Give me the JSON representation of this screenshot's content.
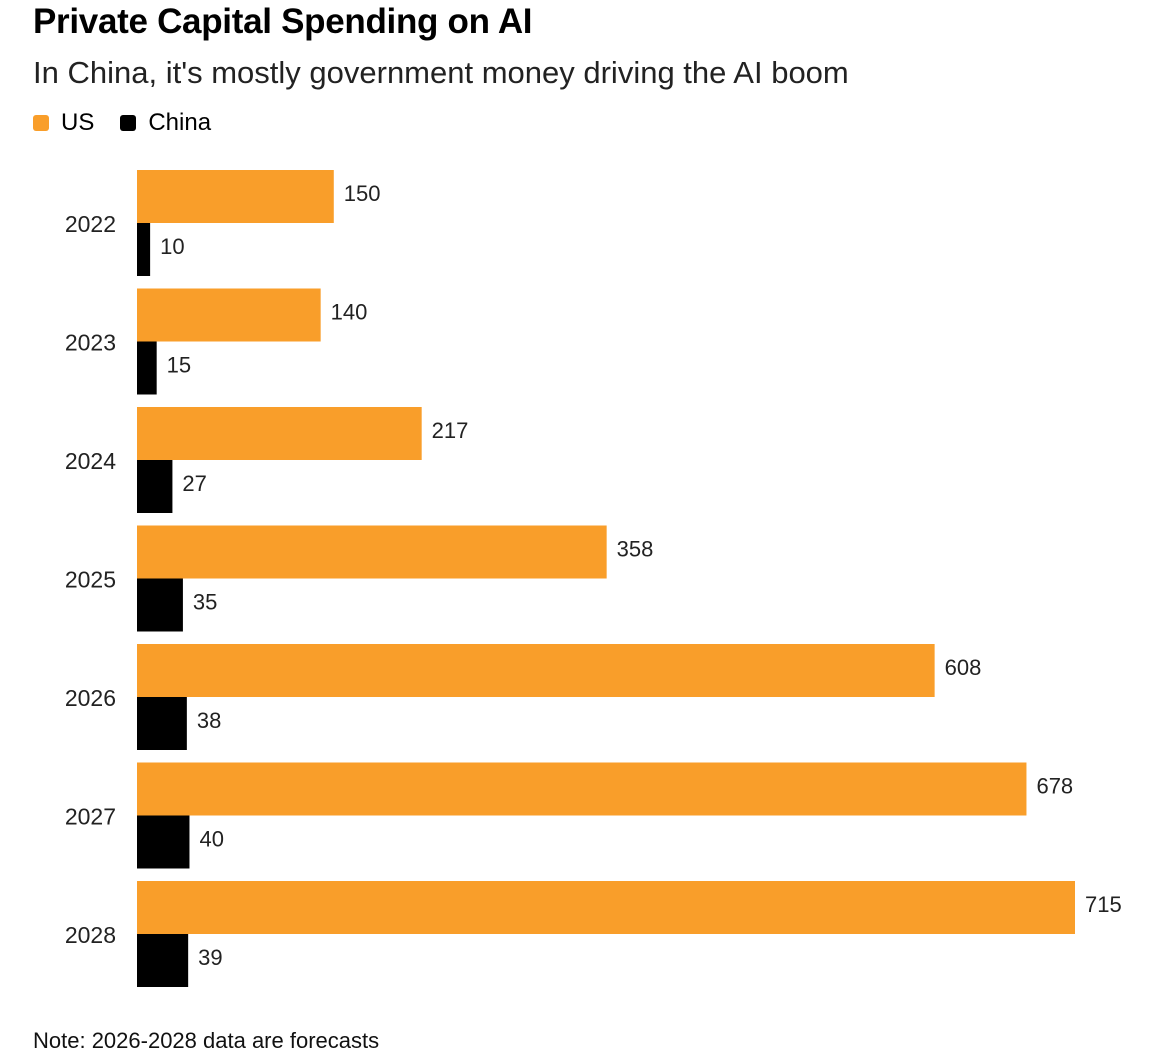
{
  "title": "Private Capital Spending on AI",
  "subtitle": "In China, it's mostly government money driving the AI boom",
  "legend": [
    {
      "label": "US",
      "color": "#F99E2A"
    },
    {
      "label": "China",
      "color": "#000000"
    }
  ],
  "note": "Note: 2026-2028 data are forecasts",
  "chart_data": {
    "type": "bar",
    "orientation": "horizontal",
    "categories": [
      "2022",
      "2023",
      "2024",
      "2025",
      "2026",
      "2027",
      "2028"
    ],
    "series": [
      {
        "name": "US",
        "color": "#F99E2A",
        "values": [
          150,
          140,
          217,
          358,
          608,
          678,
          715
        ]
      },
      {
        "name": "China",
        "color": "#000000",
        "values": [
          10,
          15,
          27,
          35,
          38,
          40,
          39
        ]
      }
    ],
    "xlim": [
      0,
      715
    ],
    "grid": false,
    "legend_position": "top-left",
    "data_labels": true
  }
}
